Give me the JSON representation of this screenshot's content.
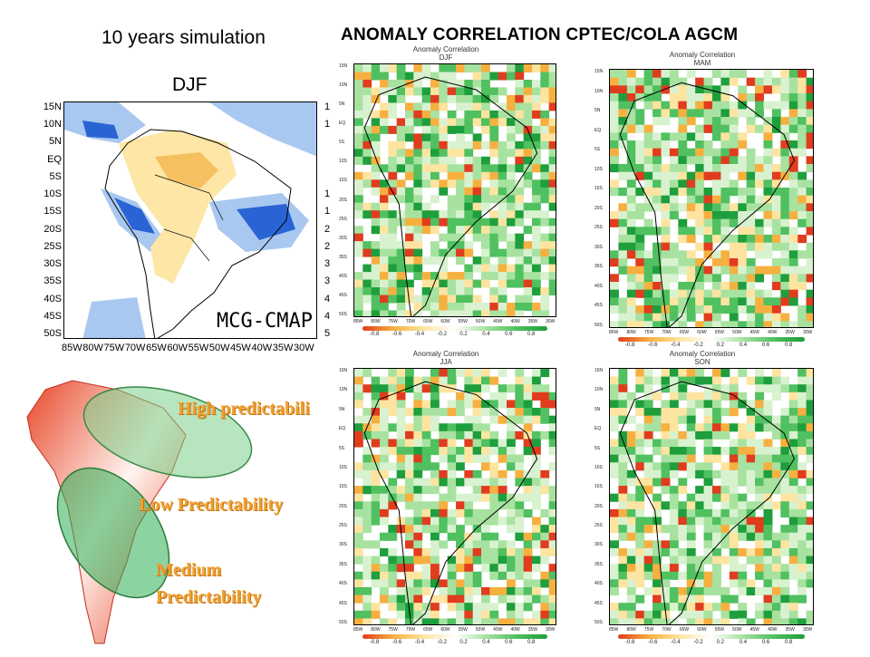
{
  "header": {
    "main_title": "ANOMALY CORRELATION CPTEC/COLA AGCM",
    "sim_title": "10 years simulation",
    "season_title": "DJF"
  },
  "left_map": {
    "label": "MCG-CMAP",
    "lat_labels": [
      "15N",
      "10N",
      "5N",
      "EQ",
      "5S",
      "10S",
      "15S",
      "20S",
      "25S",
      "30S",
      "35S",
      "40S",
      "45S",
      "50S"
    ],
    "lon_labels": [
      "85W",
      "80W",
      "75W",
      "70W",
      "65W",
      "60W",
      "55W",
      "50W",
      "45W",
      "40W",
      "35W",
      "30W"
    ],
    "right_fragments": [
      "1",
      "1",
      "",
      "",
      "",
      "1",
      "1",
      "2",
      "2",
      "3",
      "3",
      "4",
      "4",
      "5"
    ]
  },
  "predictability": {
    "high": "High predictabili",
    "low": "Low Predictability",
    "medium_line1": "Medium",
    "medium_line2": "Predictability"
  },
  "panels": [
    {
      "title": "Anomaly Correlation",
      "season": "DJF"
    },
    {
      "title": "Anomaly Correlation",
      "season": "MAM"
    },
    {
      "title": "Anomaly Correlation",
      "season": "JJA"
    },
    {
      "title": "Anomaly Correlation",
      "season": "SON"
    }
  ],
  "panel_axes": {
    "lat_labels": [
      "15N",
      "10N",
      "5N",
      "EQ",
      "5S",
      "10S",
      "15S",
      "20S",
      "25S",
      "30S",
      "35S",
      "40S",
      "45S",
      "50S"
    ],
    "lon_labels": [
      "85W",
      "80W",
      "75W",
      "70W",
      "65W",
      "60W",
      "55W",
      "50W",
      "45W",
      "40W",
      "35W",
      "30W"
    ],
    "colorbar_ticks": [
      "-0.8",
      "-0.6",
      "-0.4",
      "-0.2",
      "0.2",
      "0.4",
      "0.6",
      "0.8"
    ]
  },
  "colors": {
    "green_dark": "#1e9e3c",
    "green_mid": "#50c060",
    "green_light": "#a8e2a0",
    "green_pale": "#d8f2d0",
    "orange_light": "#fde4a0",
    "orange_mid": "#f6b040",
    "red": "#e03c1e",
    "blue_dark": "#2a64d4",
    "blue_light": "#a8c8f0",
    "yellow_map": "#fde6a6"
  }
}
